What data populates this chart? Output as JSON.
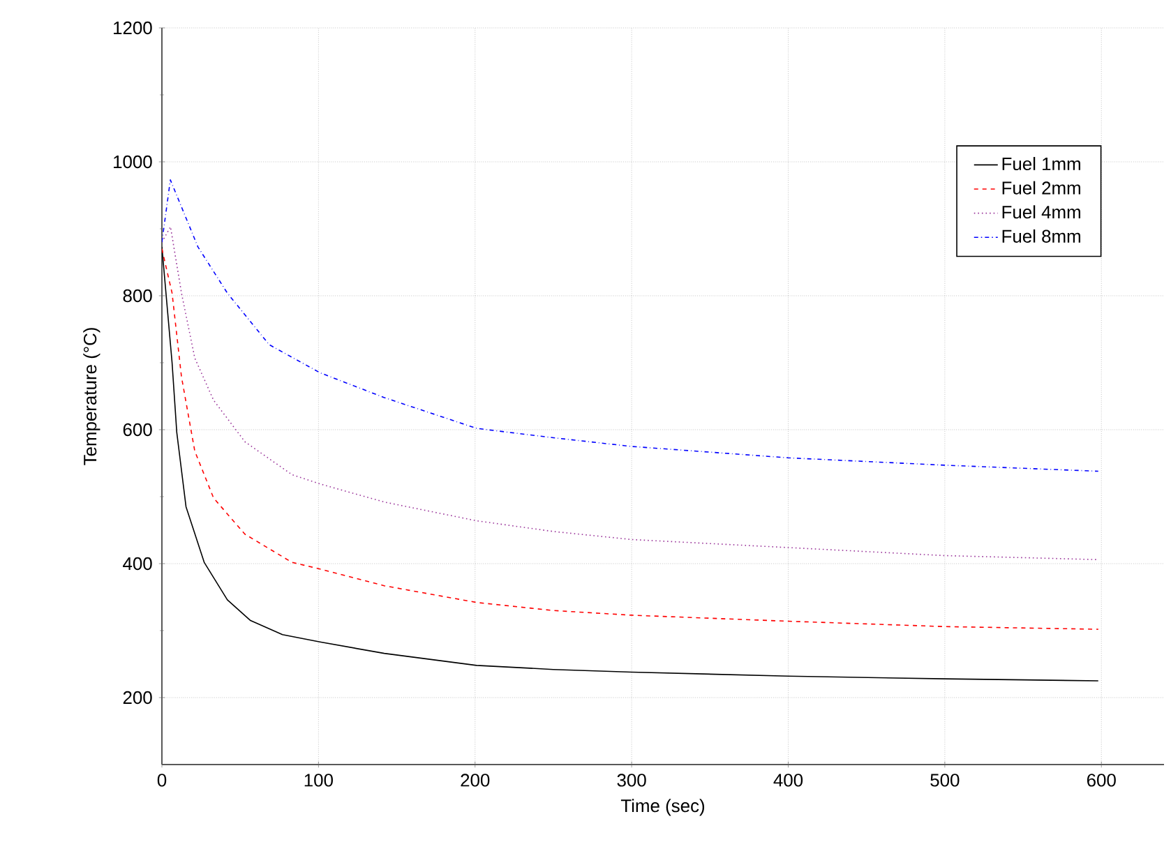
{
  "chart_data": {
    "type": "line",
    "xlabel": "Time (sec)",
    "ylabel": "Temperature (°C)",
    "xlim": [
      0,
      640
    ],
    "ylim": [
      100,
      1200
    ],
    "xticks": [
      0,
      100,
      200,
      300,
      400,
      500,
      600
    ],
    "yticks": [
      200,
      400,
      600,
      800,
      1000,
      1200
    ],
    "grid": true,
    "legend": "top right",
    "marker": "none",
    "series": [
      {
        "name": "Fuel 1mm",
        "color": "#000000",
        "line_style": "solid",
        "x": [
          0,
          6.5,
          9.5,
          15.4,
          27,
          41.8,
          56.6,
          77,
          101,
          142,
          201,
          250,
          300,
          400,
          500,
          598
        ],
        "values": [
          873,
          700,
          596,
          485,
          402,
          346,
          315,
          294,
          283,
          266,
          248,
          242,
          238,
          232,
          228,
          225
        ]
      },
      {
        "name": "Fuel 2mm",
        "color": "#ff0000",
        "line_style": "dashed",
        "x": [
          0,
          6.5,
          12.5,
          21,
          33,
          53,
          83,
          101,
          142,
          201,
          250,
          300,
          400,
          500,
          598
        ],
        "values": [
          870,
          804,
          679,
          568,
          498,
          444,
          402,
          392,
          367,
          342,
          330,
          323,
          314,
          306,
          302
        ]
      },
      {
        "name": "Fuel 4mm",
        "color": "#993399",
        "line_style": "dotted",
        "x": [
          0,
          5.5,
          12.5,
          21,
          33,
          53,
          83,
          101,
          142,
          201,
          250,
          300,
          400,
          500,
          598
        ],
        "values": [
          880,
          903,
          804,
          707,
          644,
          582,
          533,
          519,
          492,
          464,
          448,
          436,
          424,
          412,
          406
        ]
      },
      {
        "name": "Fuel 8mm",
        "color": "#0000ff",
        "line_style": "dashdot",
        "x": [
          0,
          5.4,
          23,
          41.8,
          68.5,
          101,
          142,
          201,
          250,
          300,
          400,
          500,
          598
        ],
        "values": [
          880,
          973,
          873,
          804,
          727,
          685,
          648,
          602,
          588,
          575,
          558,
          547,
          538
        ]
      }
    ]
  }
}
